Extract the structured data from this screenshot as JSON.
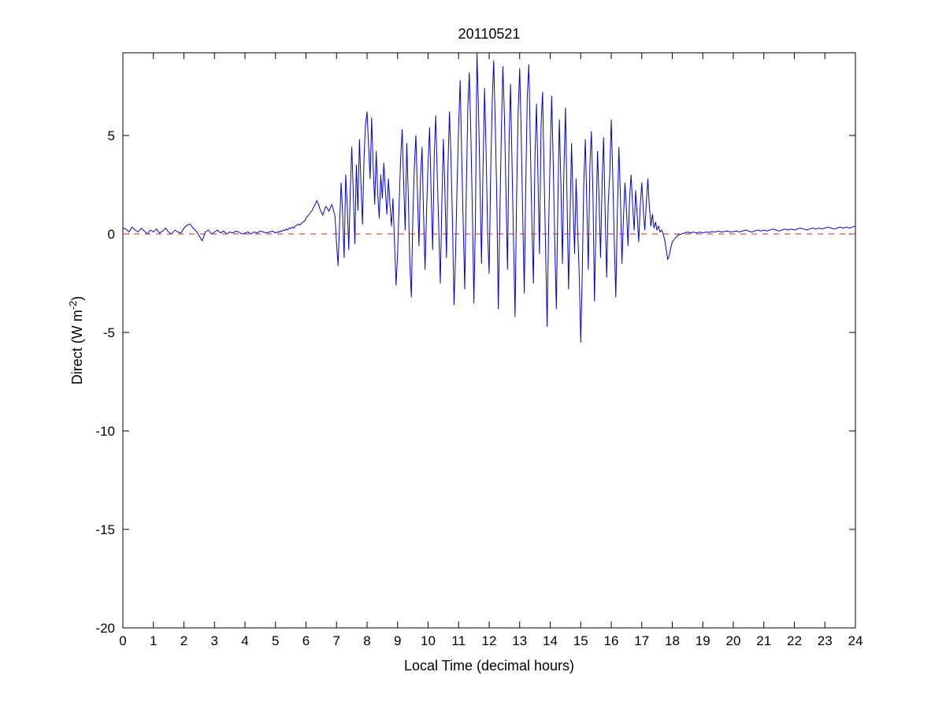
{
  "colors": {
    "axis": "#000000",
    "background": "#ffffff"
  },
  "chart_data": {
    "type": "line",
    "title": "20110521",
    "xlabel": "Local Time (decimal hours)",
    "ylabel": "Direct (W m^-2)",
    "ylabel_parts": {
      "pre": "Direct (W m",
      "sup": "-2",
      "post": ")"
    },
    "xlim": [
      0,
      24
    ],
    "ylim": [
      -20,
      9.2
    ],
    "xticks": [
      0,
      1,
      2,
      3,
      4,
      5,
      6,
      7,
      8,
      9,
      10,
      11,
      12,
      13,
      14,
      15,
      16,
      17,
      18,
      19,
      20,
      21,
      22,
      23,
      24
    ],
    "yticks": [
      5,
      0,
      -5,
      -10,
      -15,
      -20
    ],
    "grid": false,
    "legend_position": "none",
    "zero_line": {
      "y": 0,
      "color": "#cc2222",
      "dash": "7 7"
    },
    "series": [
      {
        "name": "Direct",
        "color": "#0000dd",
        "width": 1,
        "segments": [
          {
            "x0": 0.0,
            "dx": 0.1,
            "y": [
              0.3,
              0.25,
              0.1,
              0.35,
              0.2,
              0.1,
              0.3,
              0.15,
              0.0,
              0.2,
              0.1,
              0.25,
              0.05,
              0.15,
              0.3,
              0.1,
              0.0,
              0.2,
              0.1,
              0.05,
              0.3,
              0.45,
              0.5,
              0.3,
              0.15,
              -0.1,
              -0.35,
              0.1,
              0.2,
              0.0,
              0.1,
              0.2,
              0.05,
              0.15,
              0.0,
              0.1,
              0.05,
              0.15,
              0.1,
              0.0,
              0.05,
              0.1,
              0.0,
              0.1,
              0.05,
              0.15,
              0.1,
              0.05,
              0.1,
              0.15
            ]
          },
          {
            "x0": 5.0,
            "dx": 0.05,
            "y": [
              0.05,
              0.1,
              0.08,
              0.15,
              0.12,
              0.2,
              0.18,
              0.25,
              0.2,
              0.3,
              0.28,
              0.35,
              0.3,
              0.4,
              0.45,
              0.5,
              0.45,
              0.55,
              0.6,
              0.65,
              0.8,
              0.9,
              1.0,
              1.1,
              1.2,
              1.35,
              1.5,
              1.7,
              1.55,
              1.3,
              1.1,
              0.95,
              1.2,
              1.4,
              1.3,
              1.15,
              1.35,
              1.5,
              1.2,
              0.9,
              -0.5,
              -1.6,
              0.5,
              2.6,
              1.0,
              -1.2,
              3.0,
              1.5,
              -0.8,
              2.2,
              4.4,
              2.0,
              -0.5,
              3.5,
              1.2,
              4.8,
              2.5,
              0.5,
              3.8,
              5.6,
              6.2,
              4.5,
              2.8,
              5.9,
              3.5,
              1.5,
              4.2,
              2.0,
              0.8,
              3.0,
              1.8,
              3.6,
              2.2,
              1.0,
              2.8,
              1.5,
              0.4,
              1.8,
              -0.5,
              -2.6,
              -1.0,
              1.5,
              3.8,
              5.3,
              2.5,
              0.2,
              4.6,
              2.0,
              -1.5,
              -3.2,
              0.8,
              3.5,
              5.0,
              2.2,
              -0.6,
              2.8,
              4.4,
              1.0,
              -1.8,
              1.2,
              3.6,
              5.4,
              2.0,
              -0.8,
              4.0,
              6.0,
              3.0,
              0.2,
              -2.5,
              1.5,
              4.8,
              2.2,
              -1.2,
              3.4,
              6.2,
              3.8,
              0.5,
              -3.6,
              -1.0,
              2.5,
              5.5,
              7.8,
              4.0,
              0.5,
              -2.8,
              2.0,
              6.4,
              8.2,
              5.0,
              1.2,
              -3.5,
              0.8,
              9.2,
              6.5,
              2.5,
              -1.5,
              3.5,
              7.4,
              4.2,
              0.0,
              -2.0,
              3.0,
              6.8,
              8.8,
              5.5,
              1.8,
              -3.8,
              1.0,
              5.2,
              8.5,
              6.0,
              2.2,
              -1.8,
              4.5,
              7.6,
              3.5,
              -0.5,
              -4.2,
              2.0,
              6.2,
              8.4,
              5.0,
              1.0,
              -3.0,
              2.5,
              7.0,
              8.6,
              4.5,
              0.5,
              -2.5,
              3.8,
              6.6,
              2.8,
              -1.0,
              5.5,
              7.2,
              3.0,
              -0.8,
              -4.7,
              0.5,
              4.0,
              7.0,
              3.5,
              -0.5,
              -3.8,
              1.5,
              5.8,
              2.5,
              -1.5,
              3.2,
              6.4,
              2.0,
              -2.8,
              0.8,
              4.6,
              1.5,
              -1.0,
              2.8,
              0.2,
              -2.0,
              -5.5,
              -2.0,
              2.5,
              4.8,
              1.5,
              -1.8,
              3.5,
              5.2,
              2.0,
              -3.4,
              0.5,
              4.2,
              1.8,
              -1.2,
              2.6,
              4.9,
              1.0,
              -2.2,
              1.5,
              3.0,
              5.8,
              3.0,
              -0.5,
              -3.2,
              1.2,
              4.4,
              2.0,
              -1.5,
              0.8,
              2.6,
              1.2,
              -0.6,
              1.8,
              3.0,
              1.5,
              0.2,
              2.2,
              1.0,
              -0.4,
              1.4,
              2.6,
              1.2,
              0.2,
              1.6,
              2.8,
              1.4,
              0.4,
              1.0,
              0.3,
              0.6,
              0.2,
              0.4,
              0.1,
              0.2,
              0.0,
              -0.3,
              -0.8,
              -1.3,
              -1.1,
              -0.7
            ]
          },
          {
            "x0": 18.0,
            "dx": 0.1,
            "y": [
              -0.4,
              -0.2,
              -0.05,
              0.0,
              0.05,
              0.1,
              0.05,
              0.1,
              0.05,
              0.1,
              0.05,
              0.1,
              0.08,
              0.12,
              0.1,
              0.15,
              0.1,
              0.12,
              0.15,
              0.1,
              0.12,
              0.15,
              0.1,
              0.15,
              0.2,
              0.15,
              0.1,
              0.15,
              0.2,
              0.15,
              0.2,
              0.15,
              0.2,
              0.25,
              0.2,
              0.15,
              0.2,
              0.25,
              0.2,
              0.25,
              0.2,
              0.25,
              0.3,
              0.25,
              0.2,
              0.25,
              0.3,
              0.25,
              0.3,
              0.25,
              0.3,
              0.35,
              0.3,
              0.25,
              0.3,
              0.35,
              0.3,
              0.35,
              0.3,
              0.35,
              0.4
            ]
          }
        ]
      }
    ]
  }
}
